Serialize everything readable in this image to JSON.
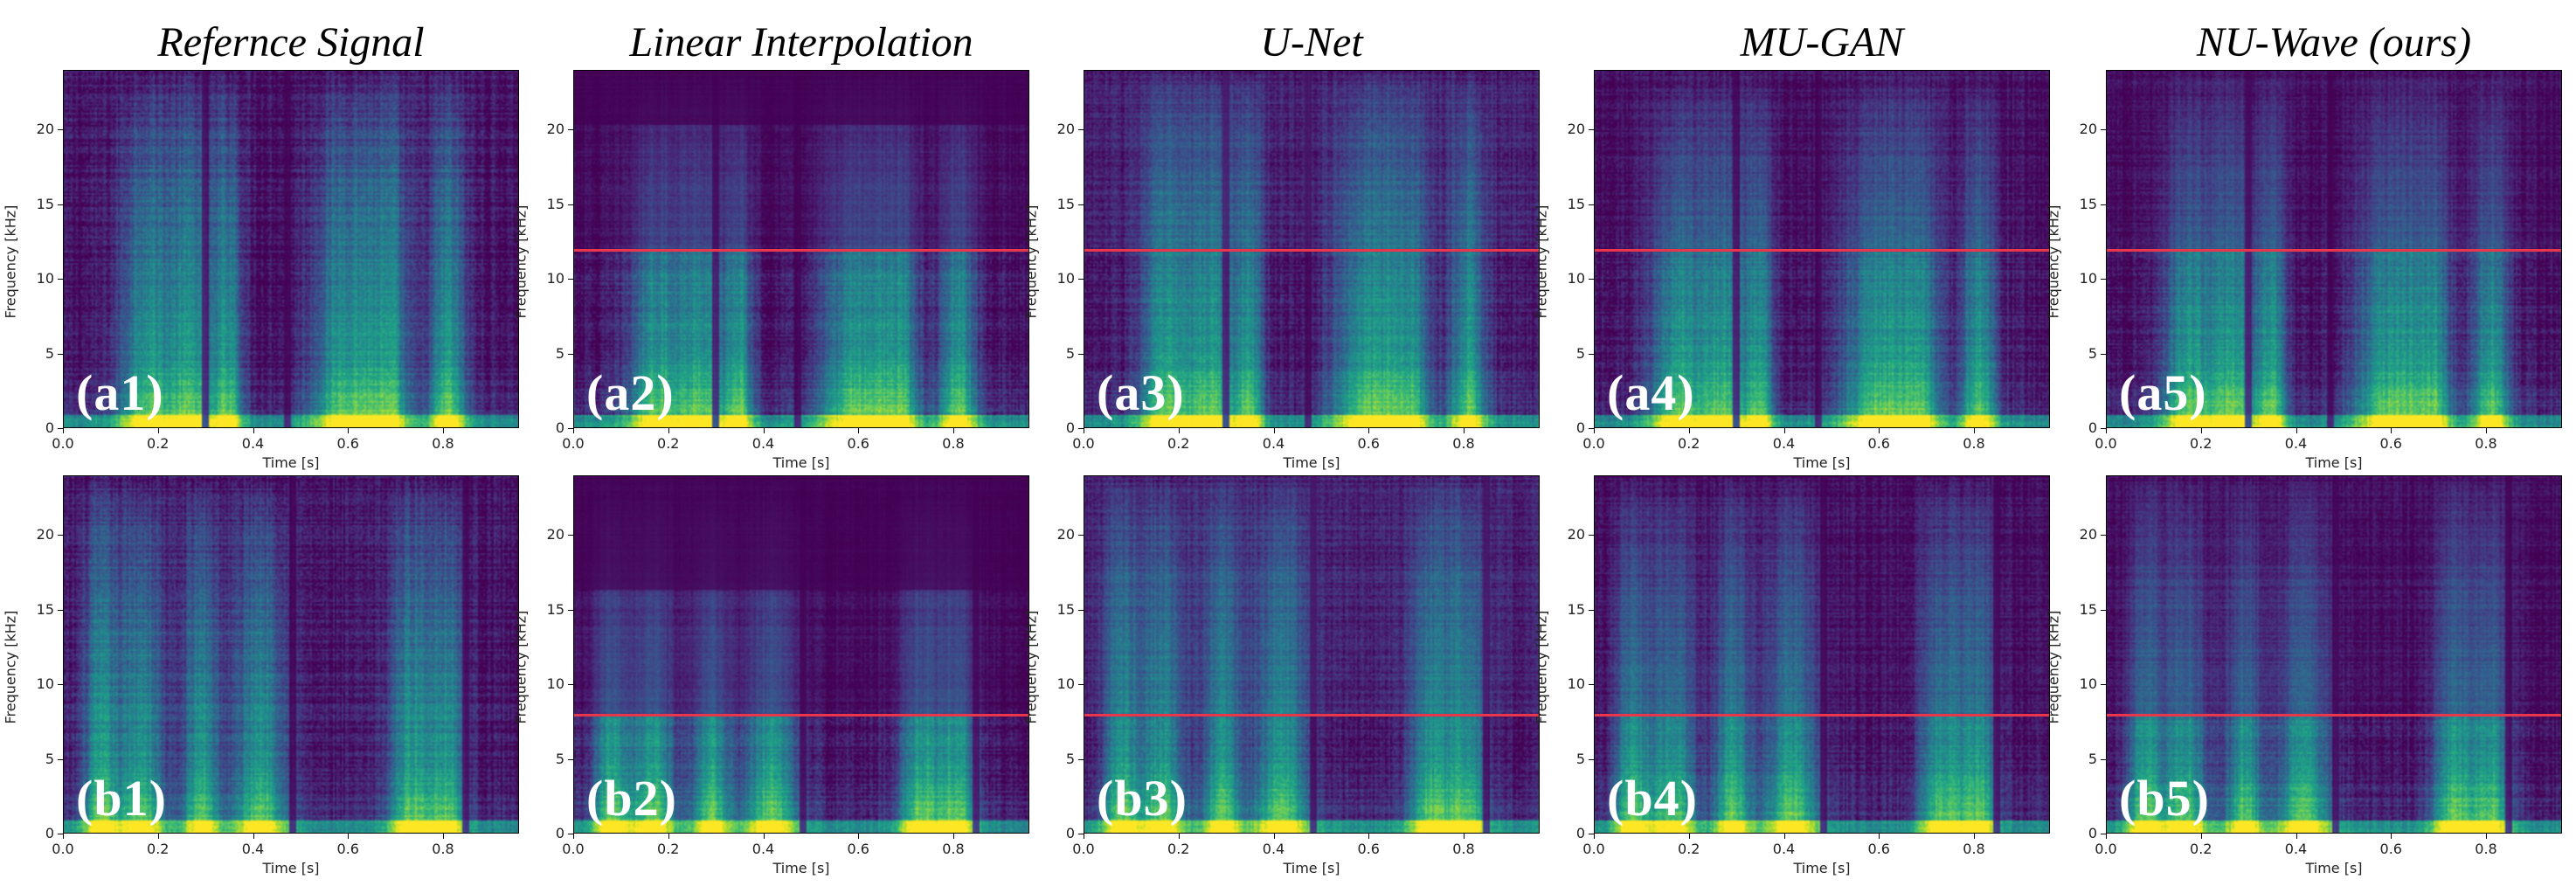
{
  "column_titles": [
    "Refernce Signal",
    "Linear Interpolation",
    "U-Net",
    "MU-GAN",
    "NU-Wave (ours)"
  ],
  "rows": [
    {
      "labels": [
        "(a1)",
        "(a2)",
        "(a3)",
        "(a4)",
        "(a5)"
      ],
      "cutoff_khz": 12
    },
    {
      "labels": [
        "(b1)",
        "(b2)",
        "(b3)",
        "(b4)",
        "(b5)"
      ],
      "cutoff_khz": 8
    }
  ],
  "colors": {
    "cutoff_line": "#e8364b",
    "colormap": "viridis"
  },
  "chart_data": {
    "type": "heatmap",
    "description_kind": "spectrogram grid",
    "xlabel": "Time [s]",
    "ylabel": "Frequency [kHz]",
    "xlim": [
      0,
      0.96
    ],
    "ylim": [
      0,
      24
    ],
    "xticks": [
      "0.0",
      "0.2",
      "0.4",
      "0.6",
      "0.8"
    ],
    "xtick_values": [
      0.0,
      0.2,
      0.4,
      0.6,
      0.8
    ],
    "yticks": [
      "0",
      "5",
      "10",
      "15",
      "20"
    ],
    "ytick_values": [
      0,
      5,
      10,
      15,
      20
    ],
    "grid": false,
    "panels_per_row": 5,
    "row_count": 2,
    "cutoff_lines_khz": {
      "row_a": 12,
      "row_b": 8
    },
    "cutoff_line_shown_in_columns": [
      2,
      3,
      4,
      5
    ]
  }
}
